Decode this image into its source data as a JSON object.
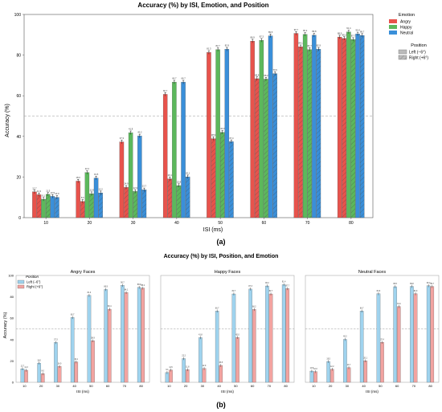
{
  "colors": {
    "angry": "#e8534c",
    "happy": "#5cb85c",
    "neutral": "#3a8fd9",
    "angry_light": "#f2a3a0",
    "neutral_light": "#9fd3ee",
    "chance_line": "#999999"
  },
  "captions": {
    "a": "(a)",
    "b": "(b)"
  },
  "chart_data": [
    {
      "type": "bar",
      "panel": "a",
      "title": "Accuracy (%) by ISI, Emotion, and Position",
      "xlabel": "ISI (ms)",
      "ylabel": "Accuracy (%)",
      "categories": [
        "10",
        "20",
        "30",
        "40",
        "50",
        "60",
        "70",
        "80"
      ],
      "ylim": [
        0,
        100
      ],
      "yticks": [
        0,
        20,
        40,
        60,
        80,
        100
      ],
      "reference_line": 50,
      "grid": false,
      "legend": {
        "placement": "top-right",
        "emotion_title": "Emotion",
        "emotion_entries": [
          "Angry",
          "Happy",
          "Neutral"
        ],
        "position_title": "Position",
        "position_entries": [
          "Left (−6°)",
          "Right (+6°)"
        ]
      },
      "series": [
        {
          "name": "Angry – Left (−6°)",
          "emotion": "angry",
          "position": "left",
          "values": [
            12.7,
            18.0,
            37.3,
            60.7,
            81.3,
            86.9,
            90.7,
            88.9
          ]
        },
        {
          "name": "Angry – Right (+6°)",
          "emotion": "angry",
          "position": "right",
          "values": [
            11.3,
            8.0,
            14.9,
            19.1,
            38.9,
            68.4,
            84.1,
            88.2
          ]
        },
        {
          "name": "Happy – Left (−6°)",
          "emotion": "happy",
          "position": "left",
          "values": [
            9.1,
            22.2,
            41.8,
            66.7,
            82.7,
            87.3,
            90.2,
            91.4
          ]
        },
        {
          "name": "Happy – Right (+6°)",
          "emotion": "happy",
          "position": "right",
          "values": [
            11.5,
            11.8,
            12.9,
            15.8,
            42.0,
            68.2,
            82.7,
            87.7
          ]
        },
        {
          "name": "Neutral – Left (−6°)",
          "emotion": "neutral",
          "position": "left",
          "values": [
            10.5,
            19.5,
            40.2,
            66.7,
            82.9,
            89.5,
            89.8,
            90.4
          ]
        },
        {
          "name": "Neutral – Right (+6°)",
          "emotion": "neutral",
          "position": "right",
          "values": [
            10.0,
            12.2,
            13.7,
            20.1,
            37.4,
            70.9,
            82.9,
            89.7
          ]
        }
      ]
    },
    {
      "type": "bar",
      "panel": "b",
      "title": "Accuracy (%) by ISI, Position, and Emotion",
      "ylabel": "Accuracy (%)",
      "ylim": [
        0,
        100
      ],
      "yticks": [
        0,
        20,
        40,
        60,
        80,
        100
      ],
      "reference_line": 50,
      "legend": {
        "placement": "top-left",
        "title": "Position",
        "entries": [
          "Left (−6°)",
          "Right (+6°)"
        ]
      },
      "facets": [
        {
          "title": "Angry Faces",
          "xlabel": "ISI (ms)",
          "categories": [
            "10",
            "20",
            "30",
            "40",
            "50",
            "60",
            "70",
            "80"
          ],
          "series": [
            {
              "position": "left",
              "values": [
                12.7,
                18.0,
                37.3,
                60.7,
                81.3,
                86.9,
                90.7,
                88.9
              ]
            },
            {
              "position": "right",
              "values": [
                11.3,
                8.0,
                14.9,
                19.1,
                38.9,
                68.4,
                84.1,
                88.2
              ]
            }
          ]
        },
        {
          "title": "Happy Faces",
          "xlabel": "ISI (ms)",
          "categories": [
            "10",
            "20",
            "30",
            "40",
            "50",
            "60",
            "70",
            "80"
          ],
          "series": [
            {
              "position": "left",
              "values": [
                9.1,
                22.2,
                41.8,
                66.7,
                82.7,
                87.3,
                90.2,
                91.4
              ]
            },
            {
              "position": "right",
              "values": [
                11.5,
                11.8,
                12.9,
                15.8,
                42.0,
                68.2,
                82.7,
                87.7
              ]
            }
          ]
        },
        {
          "title": "Neutral Faces",
          "xlabel": "ISI (ms)",
          "categories": [
            "10",
            "20",
            "30",
            "40",
            "50",
            "60",
            "70",
            "80"
          ],
          "series": [
            {
              "position": "left",
              "values": [
                10.5,
                19.5,
                40.2,
                66.7,
                82.9,
                89.5,
                89.8,
                90.4
              ]
            },
            {
              "position": "right",
              "values": [
                10.0,
                12.2,
                13.7,
                20.1,
                37.4,
                70.9,
                82.9,
                89.7
              ]
            }
          ]
        }
      ]
    }
  ]
}
